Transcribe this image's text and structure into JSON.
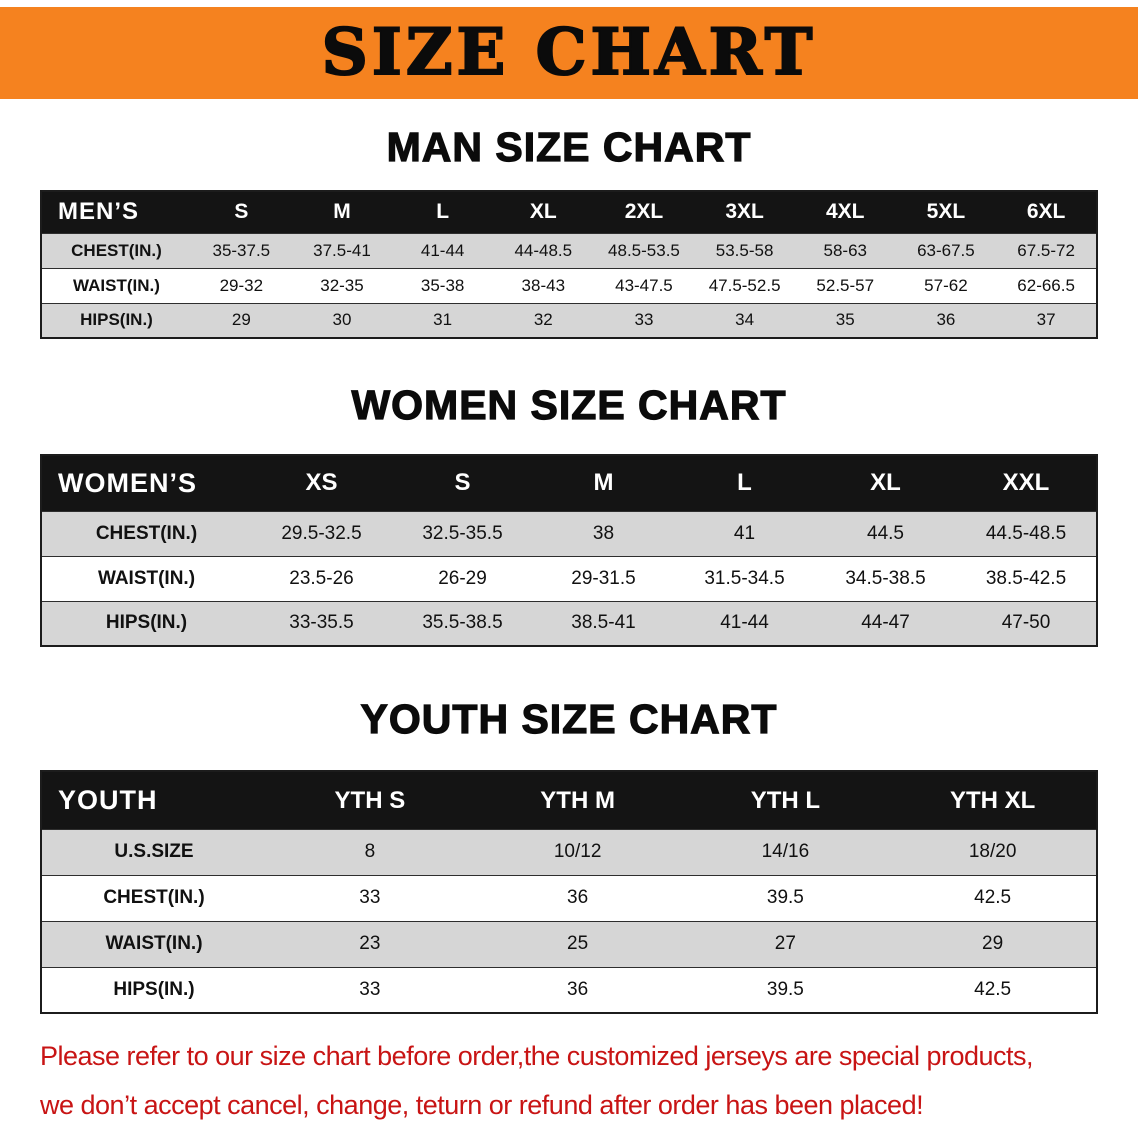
{
  "banner": {
    "title": "SIZE CHART"
  },
  "sections": [
    {
      "id": "men",
      "heading": "MAN SIZE CHART",
      "table": {
        "header": [
          "MEN’S",
          "S",
          "M",
          "L",
          "XL",
          "2XL",
          "3XL",
          "4XL",
          "5XL",
          "6XL"
        ],
        "rows": [
          [
            "CHEST(IN.)",
            "35-37.5",
            "37.5-41",
            "41-44",
            "44-48.5",
            "48.5-53.5",
            "53.5-58",
            "58-63",
            "63-67.5",
            "67.5-72"
          ],
          [
            "WAIST(IN.)",
            "29-32",
            "32-35",
            "35-38",
            "38-43",
            "43-47.5",
            "47.5-52.5",
            "52.5-57",
            "57-62",
            "62-66.5"
          ],
          [
            "HIPS(IN.)",
            "29",
            "30",
            "31",
            "32",
            "33",
            "34",
            "35",
            "36",
            "37"
          ]
        ]
      }
    },
    {
      "id": "women",
      "heading": "WOMEN SIZE CHART",
      "table": {
        "header": [
          "WOMEN’S",
          "XS",
          "S",
          "M",
          "L",
          "XL",
          "XXL"
        ],
        "rows": [
          [
            "CHEST(IN.)",
            "29.5-32.5",
            "32.5-35.5",
            "38",
            "41",
            "44.5",
            "44.5-48.5"
          ],
          [
            "WAIST(IN.)",
            "23.5-26",
            "26-29",
            "29-31.5",
            "31.5-34.5",
            "34.5-38.5",
            "38.5-42.5"
          ],
          [
            "HIPS(IN.)",
            "33-35.5",
            "35.5-38.5",
            "38.5-41",
            "41-44",
            "44-47",
            "47-50"
          ]
        ]
      }
    },
    {
      "id": "youth",
      "heading": "YOUTH SIZE CHART",
      "table": {
        "header": [
          "YOUTH",
          "YTH S",
          "YTH M",
          "YTH L",
          "YTH XL"
        ],
        "rows": [
          [
            "U.S.SIZE",
            "8",
            "10/12",
            "14/16",
            "18/20"
          ],
          [
            "CHEST(IN.)",
            "33",
            "36",
            "39.5",
            "42.5"
          ],
          [
            "WAIST(IN.)",
            "23",
            "25",
            "27",
            "29"
          ],
          [
            "HIPS(IN.)",
            "33",
            "36",
            "39.5",
            "42.5"
          ]
        ]
      }
    }
  ],
  "footer": {
    "line1": "Please refer to our size chart before order,the customized jerseys are special products,",
    "line2": "we don’t accept cancel, change, teturn or refund after order has been placed!"
  },
  "colors": {
    "banner_bg": "#F5821F",
    "header_bg": "#141414",
    "row_alt_bg": "#d6d6d6",
    "footer_text": "#c81414"
  }
}
